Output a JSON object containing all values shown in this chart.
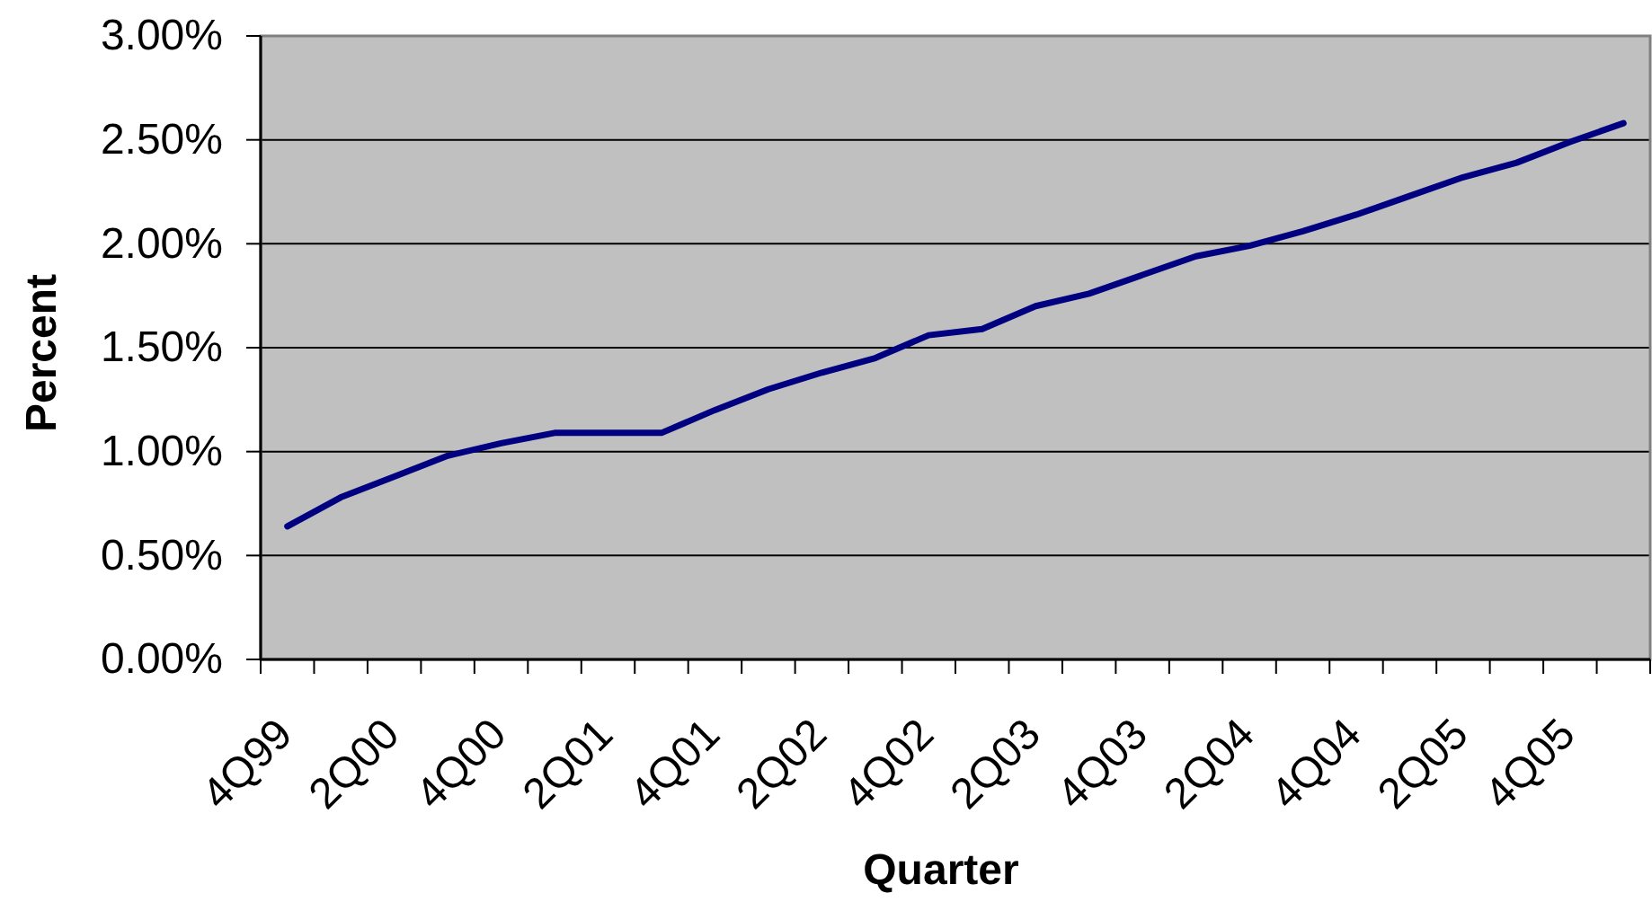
{
  "chart_data": {
    "type": "line",
    "xlabel": "Quarter",
    "ylabel": "Percent",
    "categories": [
      "4Q99",
      null,
      "2Q00",
      null,
      "4Q00",
      null,
      "2Q01",
      null,
      "4Q01",
      null,
      "2Q02",
      null,
      "4Q02",
      null,
      "2Q03",
      null,
      "4Q03",
      null,
      "2Q04",
      null,
      "4Q04",
      null,
      "2Q05",
      null,
      "4Q05",
      null
    ],
    "series": [
      {
        "color": "#000080",
        "values": [
          0.64,
          0.78,
          0.88,
          0.98,
          1.04,
          1.09,
          1.09,
          1.09,
          1.2,
          1.3,
          1.38,
          1.45,
          1.56,
          1.59,
          1.7,
          1.76,
          1.85,
          1.94,
          1.99,
          2.06,
          2.14,
          2.23,
          2.32,
          2.39,
          2.49,
          2.58
        ]
      }
    ],
    "ylim": [
      0,
      3
    ],
    "yticks": [
      {
        "value": 0,
        "label": "0.00%"
      },
      {
        "value": 0.5,
        "label": "0.50%"
      },
      {
        "value": 1,
        "label": "1.00%"
      },
      {
        "value": 1.5,
        "label": "1.50%"
      },
      {
        "value": 2,
        "label": "2.00%"
      },
      {
        "value": 2.5,
        "label": "2.50%"
      },
      {
        "value": 3,
        "label": "3.00%"
      }
    ],
    "grid": "y",
    "line_style": "solid"
  }
}
